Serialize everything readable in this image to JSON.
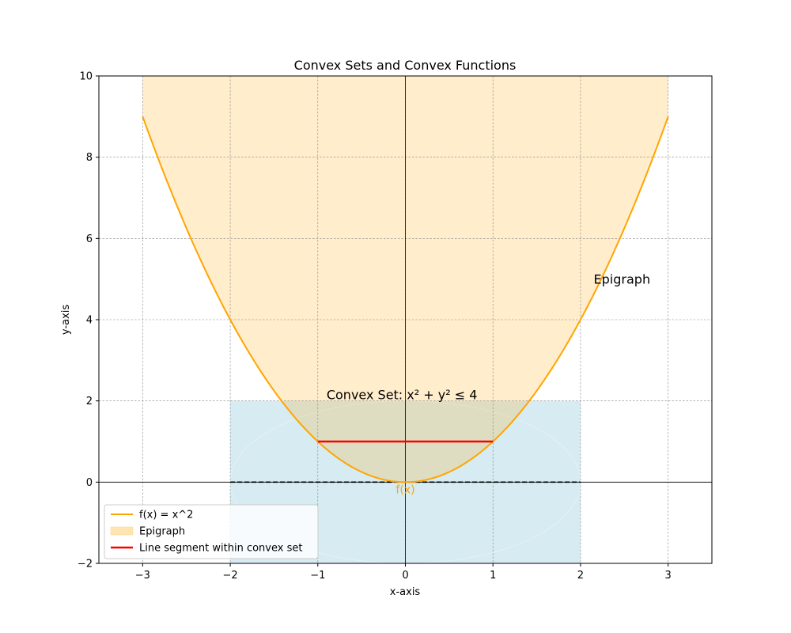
{
  "chart_data": {
    "type": "line",
    "title": "Convex Sets and Convex Functions",
    "xlabel": "x-axis",
    "ylabel": "y-axis",
    "xlim": [
      -3.5,
      3.5
    ],
    "ylim": [
      -2,
      10
    ],
    "xticks": [
      -3,
      -2,
      -1,
      0,
      1,
      2,
      3
    ],
    "yticks": [
      -2,
      0,
      2,
      4,
      6,
      8,
      10
    ],
    "xtick_labels": [
      "−3",
      "−2",
      "−1",
      "0",
      "1",
      "2",
      "3"
    ],
    "ytick_labels": [
      "−2",
      "0",
      "2",
      "4",
      "6",
      "8",
      "10"
    ],
    "grid": true,
    "legend_position": "lower-left",
    "curve": {
      "name": "f(x) = x^2",
      "x": [
        -3,
        -2.5,
        -2,
        -1.5,
        -1,
        -0.5,
        0,
        0.5,
        1,
        1.5,
        2,
        2.5,
        3
      ],
      "y": [
        9,
        6.25,
        4,
        2.25,
        1,
        0.25,
        0,
        0.25,
        1,
        2.25,
        4,
        6.25,
        9
      ],
      "color": "#ffa500",
      "label": "f(x)"
    },
    "epigraph": {
      "name": "Epigraph",
      "x_range": [
        -3,
        3
      ],
      "upper": 10,
      "color": "#ffe4b3",
      "label": "Epigraph",
      "label_x": 2.15,
      "label_y": 5
    },
    "convex_set": {
      "label": "Convex Set: x² + y² ≤ 4",
      "x_range": [
        -2,
        2
      ],
      "y_range": [
        -2,
        2
      ],
      "color": "#add8e6",
      "label_x": -0.9,
      "label_y": 2
    },
    "segment": {
      "name": "Line segment within convex set",
      "x": [
        -1,
        1
      ],
      "y": [
        1,
        1
      ],
      "color": "#ff0000"
    },
    "dashed_line": {
      "x": [
        -2,
        2
      ],
      "y": [
        0,
        0
      ],
      "color": "#000000"
    },
    "legend": [
      {
        "label": "f(x) = x^2",
        "kind": "line",
        "color": "#ffa500"
      },
      {
        "label": "Epigraph",
        "kind": "patch",
        "color": "#ffe4b3"
      },
      {
        "label": "Line segment within convex set",
        "kind": "line",
        "color": "#ff0000"
      }
    ]
  }
}
